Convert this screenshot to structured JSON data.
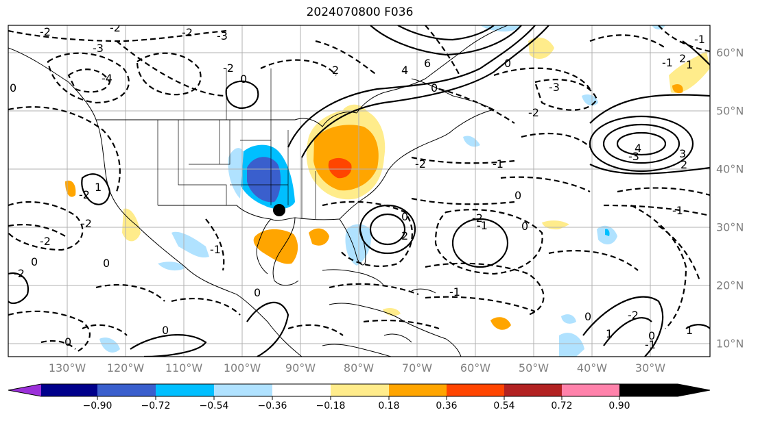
{
  "title": "2024070800 F036",
  "lon_labels": [
    "130°W",
    "120°W",
    "110°W",
    "100°W",
    "90°W",
    "80°W",
    "70°W",
    "60°W",
    "50°W",
    "40°W",
    "30°W"
  ],
  "lat_labels": [
    "60°N",
    "50°N",
    "40°N",
    "30°N",
    "20°N",
    "10°N"
  ],
  "colorbar": {
    "ticks": [
      "−0.90",
      "−0.72",
      "−0.54",
      "−0.36",
      "−0.18",
      "0.18",
      "0.36",
      "0.54",
      "0.72",
      "0.90"
    ],
    "colors": [
      "#9b30d9",
      "#00008b",
      "#3a5fcd",
      "#00bfff",
      "#b0e2ff",
      "#ffffff",
      "#ffec8b",
      "#ffa500",
      "#ff4500",
      "#b22222",
      "#ff82ab"
    ],
    "extend": "both"
  },
  "contour_labels": [
    "-2",
    "-3",
    "-2",
    "-3",
    "-4",
    "0",
    "-2",
    "-2",
    "2",
    "4",
    "6",
    "0",
    "-3",
    "2",
    "-1",
    "-2",
    "-2",
    "-1",
    "-3",
    "4",
    "3",
    "2",
    "0",
    "-1",
    "-2",
    "-1",
    "0",
    "0",
    "-1",
    "-2",
    "1",
    "-2",
    "-2",
    "-2",
    "-1",
    "0",
    "0",
    "1",
    "0",
    "-1",
    "0",
    "-2",
    "0",
    "0",
    "1",
    "0",
    "2",
    "1",
    "0",
    "-1",
    "0"
  ],
  "marker": "black-dot"
}
